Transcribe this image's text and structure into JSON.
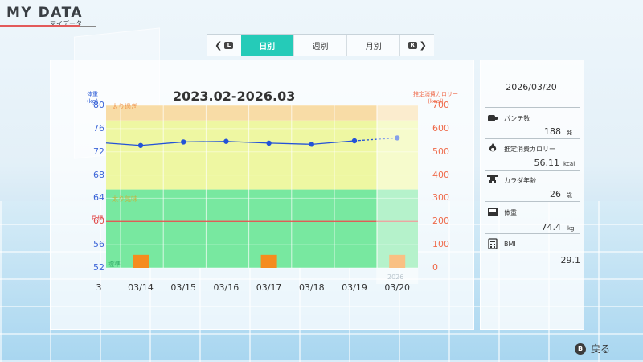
{
  "header": {
    "title": "MY DATA",
    "subtitle": "マイデータ"
  },
  "tabs": {
    "prev_button": "L",
    "next_button": "R",
    "items": [
      {
        "label": "日別",
        "active": true
      },
      {
        "label": "週別",
        "active": false
      },
      {
        "label": "月別",
        "active": false
      }
    ]
  },
  "chart": {
    "range_title": "2023.02-2026.03",
    "left_axis_title": "体重",
    "left_axis_unit": "(kg)",
    "right_axis_title": "推定消費カロリー",
    "right_axis_unit": "(kcal)",
    "left_ticks": [
      "80",
      "76",
      "72",
      "68",
      "64",
      "60",
      "56",
      "52"
    ],
    "right_ticks": [
      "700",
      "600",
      "500",
      "400",
      "300",
      "200",
      "100",
      "0"
    ],
    "target_label": "目標",
    "zones": {
      "over": "太り過ぎ",
      "slightly_over": "太り気味",
      "normal": "標準"
    },
    "partial_date": "3",
    "year_label": "2026",
    "colors": {
      "over": "#f8dca6",
      "slightly_over": "#eef7a2",
      "normal": "#78e8a0",
      "weight_line": "#2352d8",
      "calorie_bar": "#f58c1e",
      "target_line": "#e84a4a"
    }
  },
  "chart_data": {
    "type": "line",
    "x": [
      "03/14",
      "03/15",
      "03/16",
      "03/17",
      "03/18",
      "03/19",
      "03/20"
    ],
    "series": [
      {
        "name": "体重",
        "values": [
          73.1,
          73.7,
          73.8,
          73.5,
          73.3,
          73.9,
          74.4
        ]
      },
      {
        "name": "推定消費カロリー",
        "values": [
          56,
          0,
          0,
          56,
          0,
          0,
          56
        ]
      }
    ],
    "ylim": [
      52,
      80
    ],
    "y2lim": [
      0,
      700
    ],
    "target": 60,
    "zones": [
      {
        "label": "太り過ぎ",
        "from": 77.4,
        "to": 80
      },
      {
        "label": "太り気味",
        "from": 65.5,
        "to": 77.4
      },
      {
        "label": "標準",
        "from": 52,
        "to": 65.5
      }
    ]
  },
  "detail": {
    "date": "2026/03/20",
    "stats": [
      {
        "label": "パンチ数",
        "value": "188",
        "unit": "発",
        "icon": "punch-icon"
      },
      {
        "label": "推定消費カロリー",
        "value": "56.11",
        "unit": "kcal",
        "icon": "flame-icon"
      },
      {
        "label": "カラダ年齢",
        "value": "26",
        "unit": "歳",
        "icon": "body-icon"
      },
      {
        "label": "体重",
        "value": "74.4",
        "unit": "kg",
        "icon": "scale-icon"
      },
      {
        "label": "BMI",
        "value": "29.1",
        "unit": "",
        "icon": "calculator-icon"
      }
    ]
  },
  "footer": {
    "back_button_glyph": "B",
    "back_label": "戻る"
  }
}
